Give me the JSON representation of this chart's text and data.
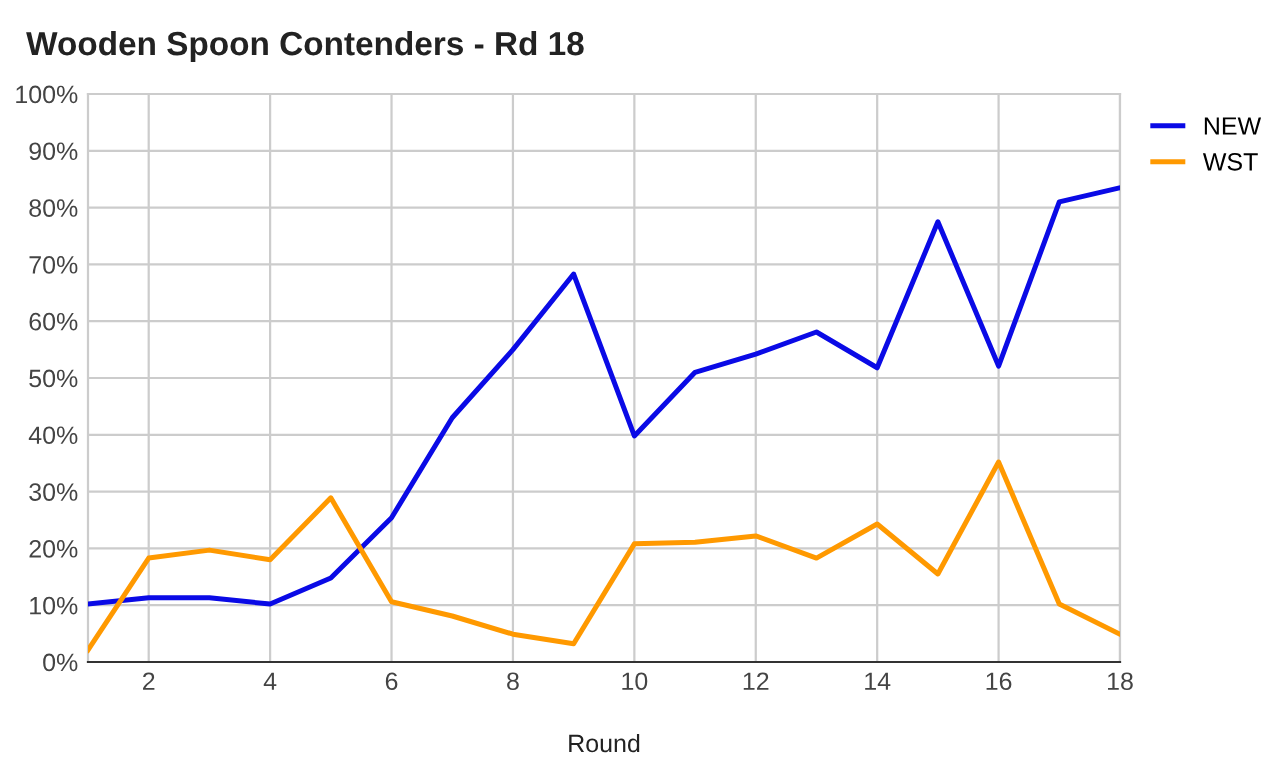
{
  "chart_data": {
    "type": "line",
    "title": "Wooden Spoon Contenders - Rd 18",
    "xlabel": "Round",
    "x": [
      1,
      2,
      3,
      4,
      5,
      6,
      7,
      8,
      9,
      10,
      11,
      12,
      13,
      14,
      15,
      16,
      17,
      18
    ],
    "series": [
      {
        "name": "NEW",
        "color": "#0a0ae6",
        "values": [
          10.2,
          11.3,
          11.3,
          10.2,
          14.8,
          25.4,
          43,
          55,
          68.3,
          39.8,
          51,
          54.2,
          58.1,
          51.8,
          77.5,
          52.1,
          81,
          83.5
        ]
      },
      {
        "name": "WST",
        "color": "#ff9900",
        "values": [
          2.1,
          18.3,
          19.7,
          18,
          28.9,
          10.6,
          8.1,
          4.9,
          3.2,
          20.8,
          21.1,
          22.2,
          18.3,
          24.3,
          15.5,
          35.2,
          10.2,
          4.9
        ]
      }
    ],
    "xlim": [
      1,
      18
    ],
    "xticks": [
      2,
      4,
      6,
      8,
      10,
      12,
      14,
      16,
      18
    ],
    "ylim": [
      0,
      100
    ],
    "yticks": [
      {
        "value": 0,
        "label": "0%"
      },
      {
        "value": 10,
        "label": "10%"
      },
      {
        "value": 20,
        "label": "20%"
      },
      {
        "value": 30,
        "label": "30%"
      },
      {
        "value": 40,
        "label": "40%"
      },
      {
        "value": 50,
        "label": "50%"
      },
      {
        "value": 60,
        "label": "60%"
      },
      {
        "value": 70,
        "label": "70%"
      },
      {
        "value": 80,
        "label": "80%"
      },
      {
        "value": 90,
        "label": "90%"
      },
      {
        "value": 100,
        "label": "100%"
      }
    ],
    "grid": true,
    "legend": "right",
    "marker": "none",
    "line_style": "solid"
  }
}
